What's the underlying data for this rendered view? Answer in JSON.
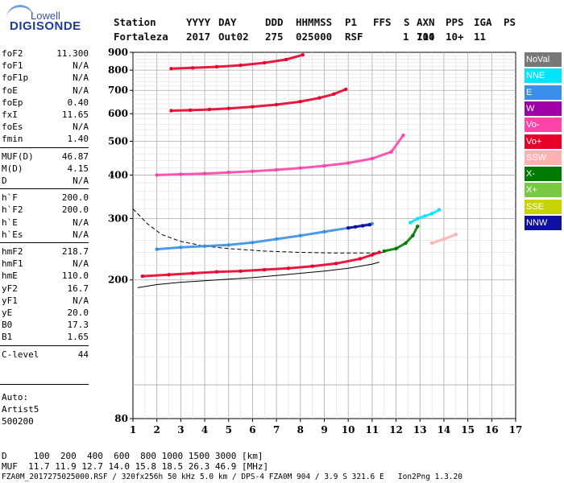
{
  "logo": {
    "line1": "Lowell",
    "line2": "DIGISONDE"
  },
  "header": {
    "labels": [
      "Station",
      "YYYY",
      "DAY",
      "DDD",
      "HHMMSS",
      "P1",
      "FFS",
      "S",
      "AXN",
      "PPS",
      "IGA",
      "PS"
    ],
    "values": [
      "Fortaleza",
      "2017",
      "Out02",
      "275",
      "025000",
      "RSF",
      "1",
      "714",
      "100",
      "10+",
      "11"
    ]
  },
  "params": [
    [
      {
        "k": "foF2",
        "v": "11.300"
      },
      {
        "k": "foF1",
        "v": "N/A"
      },
      {
        "k": "foF1p",
        "v": "N/A"
      },
      {
        "k": "foE",
        "v": "N/A"
      },
      {
        "k": "foEp",
        "v": "0.40"
      },
      {
        "k": "fxI",
        "v": "11.65"
      },
      {
        "k": "foEs",
        "v": "N/A"
      },
      {
        "k": "fmin",
        "v": "1.40"
      }
    ],
    [
      {
        "k": "MUF(D)",
        "v": "46.87"
      },
      {
        "k": "M(D)",
        "v": "4.15"
      },
      {
        "k": "D",
        "v": "N/A"
      }
    ],
    [
      {
        "k": "h`F",
        "v": "200.0"
      },
      {
        "k": "h`F2",
        "v": "200.0"
      },
      {
        "k": "h`E",
        "v": "N/A"
      },
      {
        "k": "h`Es",
        "v": "N/A"
      }
    ],
    [
      {
        "k": "hmF2",
        "v": "218.7"
      },
      {
        "k": "hmF1",
        "v": "N/A"
      },
      {
        "k": "hmE",
        "v": "110.0"
      },
      {
        "k": "yF2",
        "v": "16.7"
      },
      {
        "k": "yF1",
        "v": "N/A"
      },
      {
        "k": "yE",
        "v": "20.0"
      },
      {
        "k": "B0",
        "v": "17.3"
      },
      {
        "k": "B1",
        "v": "1.65"
      }
    ],
    [
      {
        "k": "C-level",
        "v": "44"
      }
    ]
  ],
  "auto": {
    "line1": "Auto:",
    "line2": "Artist5",
    "line3": "500200"
  },
  "legend": [
    {
      "label": "NoVal",
      "color": "#777777",
      "text": "#ffffff"
    },
    {
      "label": "NNE",
      "color": "#00e5ff",
      "text": "#ffffff"
    },
    {
      "label": "E",
      "color": "#3a8fe8",
      "text": "#ffffff"
    },
    {
      "label": "W",
      "color": "#a000a8",
      "text": "#ffffff"
    },
    {
      "label": "Vo-",
      "color": "#ff44a8",
      "text": "#ffffff"
    },
    {
      "label": "Vo+",
      "color": "#e8002a",
      "text": "#ffffff"
    },
    {
      "label": "SSW",
      "color": "#ffb0b0",
      "text": "#ffffff"
    },
    {
      "label": "X-",
      "color": "#007a00",
      "text": "#ffffff"
    },
    {
      "label": "X+",
      "color": "#7ac943",
      "text": "#ffffff"
    },
    {
      "label": "SSE",
      "color": "#c8d400",
      "text": "#ffffff"
    },
    {
      "label": "NNW",
      "color": "#1010a0",
      "text": "#ffffff"
    }
  ],
  "footer": {
    "d_line": "D     100  200  400  600  800 1000 1500 3000 [km]",
    "muf_line": "MUF  11.7 11.9 12.7 14.0 15.8 18.5 26.3 46.9 [MHz]",
    "file_line": "FZA0M_2017275025000.RSF / 320fx256h 50 kHz 5.0 km / DPS-4 FZA0M 904 / 3.9 S 321.6 E   Ion2Png 1.3.20"
  },
  "chart_data": {
    "type": "scatter",
    "title": "",
    "xlabel": "",
    "ylabel": "",
    "xlim": [
      1,
      17
    ],
    "ylim": [
      80,
      900
    ],
    "y_scale": "log",
    "x_ticks": [
      1,
      2,
      3,
      4,
      5,
      6,
      7,
      8,
      9,
      10,
      11,
      12,
      13,
      14,
      15,
      16,
      17
    ],
    "y_ticks": [
      80,
      200,
      300,
      400,
      500,
      600,
      700,
      800,
      900
    ],
    "grid": true,
    "traces": [
      {
        "name": "Vo+",
        "color": "#e8002a",
        "x": [
          1.4,
          2.5,
          3.5,
          4.5,
          5.5,
          6.5,
          7.5,
          8.5,
          9.5,
          10.5,
          11.0,
          11.3
        ],
        "y": [
          205,
          207,
          209,
          211,
          212,
          214,
          216,
          219,
          223,
          230,
          236,
          240
        ]
      },
      {
        "name": "X-",
        "color": "#007a00",
        "x": [
          11.5,
          12.0,
          12.4,
          12.7,
          12.9
        ],
        "y": [
          242,
          246,
          255,
          268,
          285
        ]
      },
      {
        "name": "Vo-",
        "color": "#ff44a8",
        "x": [
          2.0,
          3.0,
          4.0,
          5.0,
          6.0,
          7.0,
          8.0,
          9.0,
          10.0,
          11.0,
          11.8,
          12.3
        ],
        "y": [
          400,
          402,
          404,
          407,
          410,
          414,
          419,
          425,
          433,
          446,
          466,
          520
        ]
      },
      {
        "name": "Vo+",
        "color": "#e8002a",
        "x": [
          2.6,
          3.4,
          4.2,
          5.0,
          6.0,
          7.0,
          8.0,
          8.8,
          9.4,
          9.9
        ],
        "y": [
          612,
          614,
          617,
          621,
          628,
          637,
          650,
          666,
          683,
          705
        ]
      },
      {
        "name": "Vo+",
        "color": "#e8002a",
        "x": [
          2.6,
          3.5,
          4.5,
          5.5,
          6.5,
          7.4,
          8.1
        ],
        "y": [
          808,
          812,
          818,
          826,
          840,
          858,
          885
        ]
      },
      {
        "name": "E",
        "color": "#3a8fe8",
        "x": [
          2.0,
          3.0,
          4.0,
          5.0,
          6.0,
          7.0,
          8.0,
          9.0,
          10.0,
          11.0
        ],
        "y": [
          245,
          248,
          250,
          252,
          256,
          262,
          268,
          275,
          282,
          290
        ]
      },
      {
        "name": "NNW",
        "color": "#1010a0",
        "x": [
          10.0,
          10.3,
          10.6,
          10.9
        ],
        "y": [
          282,
          284,
          286,
          288
        ]
      },
      {
        "name": "NNE",
        "color": "#00e5ff",
        "x": [
          12.6,
          12.9,
          13.2,
          13.5,
          13.8
        ],
        "y": [
          292,
          300,
          305,
          310,
          318
        ]
      },
      {
        "name": "SSW",
        "color": "#ffb0b0",
        "x": [
          13.5,
          14.0,
          14.5
        ],
        "y": [
          255,
          262,
          270
        ]
      }
    ],
    "curves": [
      {
        "style": "dashed",
        "x": [
          1.0,
          1.6,
          2.2,
          3.0,
          4.0,
          5.0,
          6.5,
          8.0,
          9.5,
          11.0,
          11.5
        ],
        "y": [
          320,
          290,
          270,
          258,
          250,
          246,
          242,
          240,
          239,
          239,
          240
        ]
      },
      {
        "style": "solid",
        "x": [
          1.2,
          2.0,
          3.0,
          4.0,
          5.0,
          6.0,
          7.0,
          8.0,
          9.0,
          10.0,
          11.0,
          11.3
        ],
        "y": [
          190,
          194,
          197,
          199,
          201,
          203,
          206,
          209,
          212,
          216,
          222,
          225
        ]
      }
    ]
  }
}
